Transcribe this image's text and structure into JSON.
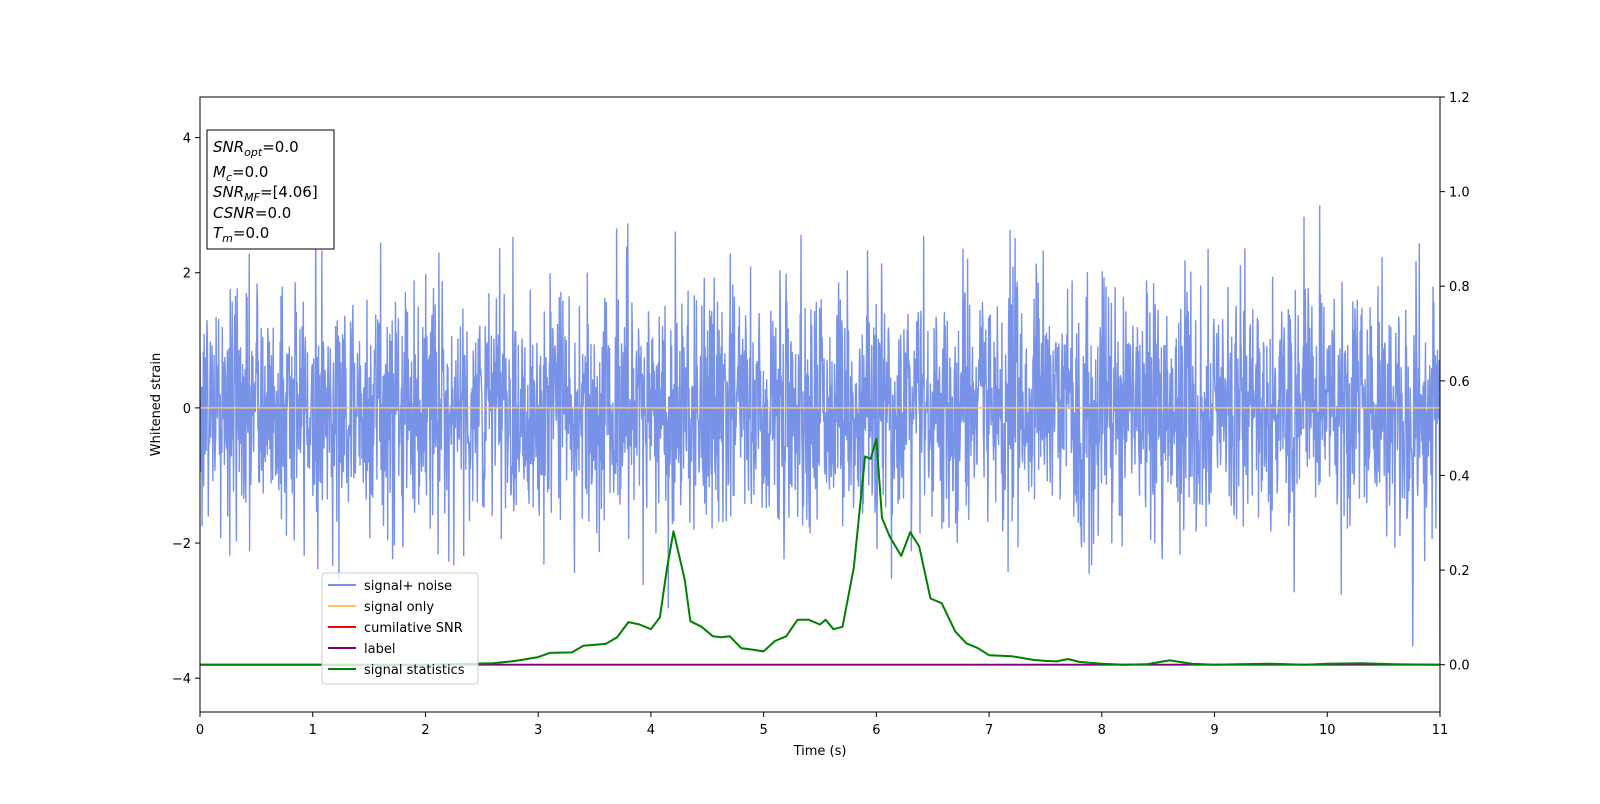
{
  "chart_data": {
    "type": "line",
    "xlabel": "Time (s)",
    "ylabel": "Whitened strain",
    "xlim": [
      0,
      11
    ],
    "ylim_left": [
      -4.5,
      4.6
    ],
    "ylim_right": [
      -0.1,
      1.2
    ],
    "x_ticks": [
      "0",
      "1",
      "2",
      "3",
      "4",
      "5",
      "6",
      "7",
      "8",
      "9",
      "10",
      "11"
    ],
    "y_ticks_left": [
      "−4",
      "−2",
      "0",
      "2",
      "4"
    ],
    "y_ticks_right": [
      "0.0",
      "0.2",
      "0.4",
      "0.6",
      "0.8",
      "1.0",
      "1.2"
    ],
    "grid": false,
    "legend_position": "lower-left",
    "series": [
      {
        "name": "signal+ noise",
        "color": "#7892e8",
        "axis": "left",
        "description_level": "noise",
        "approx_std": 0.9,
        "approx_range": [
          -4.1,
          4.15
        ]
      },
      {
        "name": "signal only",
        "color": "#ffc266",
        "axis": "left",
        "x": [
          0,
          11
        ],
        "y": [
          0,
          0
        ]
      },
      {
        "name": "cumilative SNR",
        "color": "#ff0000",
        "axis": "right",
        "x": [
          0,
          11
        ],
        "y": [
          0,
          0
        ]
      },
      {
        "name": "label",
        "color": "#800080",
        "axis": "right",
        "x": [
          0,
          11
        ],
        "y": [
          0,
          0
        ]
      },
      {
        "name": "signal statistics",
        "color": "#008000",
        "axis": "right",
        "x": [
          0,
          0.5,
          1,
          1.5,
          2,
          2.4,
          2.6,
          2.8,
          3.0,
          3.1,
          3.3,
          3.4,
          3.6,
          3.7,
          3.8,
          3.9,
          4.0,
          4.08,
          4.14,
          4.2,
          4.3,
          4.35,
          4.45,
          4.55,
          4.62,
          4.7,
          4.8,
          4.9,
          5.0,
          5.1,
          5.2,
          5.3,
          5.4,
          5.5,
          5.55,
          5.62,
          5.7,
          5.8,
          5.9,
          5.95,
          6.0,
          6.05,
          6.12,
          6.22,
          6.3,
          6.38,
          6.48,
          6.58,
          6.7,
          6.8,
          6.9,
          7.0,
          7.2,
          7.4,
          7.5,
          7.6,
          7.7,
          7.8,
          8.0,
          8.2,
          8.4,
          8.6,
          8.8,
          9.0,
          9.2,
          9.5,
          9.8,
          10.0,
          10.3,
          10.6,
          11.0
        ],
        "y": [
          0.0,
          0.0,
          0.0,
          0.0,
          0.0,
          0.002,
          0.003,
          0.008,
          0.016,
          0.025,
          0.026,
          0.04,
          0.044,
          0.058,
          0.09,
          0.085,
          0.075,
          0.1,
          0.2,
          0.282,
          0.18,
          0.092,
          0.08,
          0.06,
          0.058,
          0.06,
          0.035,
          0.032,
          0.028,
          0.05,
          0.06,
          0.095,
          0.095,
          0.085,
          0.095,
          0.075,
          0.08,
          0.205,
          0.44,
          0.435,
          0.477,
          0.31,
          0.27,
          0.23,
          0.28,
          0.25,
          0.14,
          0.13,
          0.07,
          0.045,
          0.035,
          0.02,
          0.018,
          0.01,
          0.008,
          0.007,
          0.012,
          0.006,
          0.002,
          0.0,
          0.001,
          0.009,
          0.002,
          0.0,
          0.001,
          0.002,
          0.0,
          0.002,
          0.003,
          0.001,
          0.0
        ]
      }
    ],
    "annotation": {
      "lines": [
        {
          "name": "SNR",
          "sub": "opt",
          "value": "=0.0"
        },
        {
          "name": "M",
          "sub": "c",
          "value": "=0.0"
        },
        {
          "name": "SNR",
          "sub": "MF",
          "value": "=[4.06]"
        },
        {
          "name": "CSNR",
          "sub": "",
          "value": "=0.0"
        },
        {
          "name": "T",
          "sub": "m",
          "value": "=0.0"
        }
      ]
    }
  }
}
